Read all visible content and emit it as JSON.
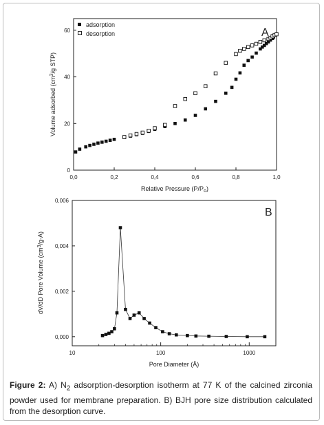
{
  "chart_data": [
    {
      "type": "scatter",
      "panel_label": "A",
      "xlabel_main": "Relative Pressure (P/P",
      "xlabel_sub": "o",
      "xlabel_end": ")",
      "ylabel_main": "Volume adsorbed (cm",
      "ylabel_sup": "3",
      "ylabel_end": "/g STP)",
      "xlim": [
        0.0,
        1.0
      ],
      "ylim": [
        0,
        65
      ],
      "xticks": [
        0.0,
        0.2,
        0.4,
        0.6,
        0.8,
        1.0
      ],
      "xtick_labels": [
        "0,0",
        "0,2",
        "0,4",
        "0,6",
        "0,8",
        "1,0"
      ],
      "yticks": [
        0,
        20,
        40,
        60
      ],
      "ytick_labels": [
        "0",
        "20",
        "40",
        "60"
      ],
      "legend_position": "top-left",
      "series": [
        {
          "name": "adsorption",
          "marker": "filled-square",
          "x": [
            0.01,
            0.03,
            0.06,
            0.08,
            0.1,
            0.12,
            0.14,
            0.16,
            0.18,
            0.2,
            0.25,
            0.28,
            0.31,
            0.34,
            0.37,
            0.4,
            0.45,
            0.5,
            0.55,
            0.6,
            0.65,
            0.7,
            0.75,
            0.78,
            0.8,
            0.82,
            0.84,
            0.86,
            0.88,
            0.9,
            0.92,
            0.93,
            0.94,
            0.95,
            0.96,
            0.97,
            0.98,
            0.985,
            0.99
          ],
          "y": [
            7.8,
            9.0,
            10.0,
            10.6,
            11.1,
            11.6,
            12.0,
            12.4,
            12.8,
            13.2,
            14.0,
            14.6,
            15.2,
            15.8,
            16.6,
            17.5,
            18.7,
            20.0,
            21.5,
            23.5,
            26.3,
            29.5,
            33.0,
            35.5,
            39.0,
            41.7,
            45.0,
            47.0,
            48.5,
            50.2,
            52.0,
            52.8,
            53.5,
            54.3,
            55.0,
            55.8,
            56.5,
            57.0,
            57.8
          ]
        },
        {
          "name": "desorption",
          "marker": "open-square",
          "x": [
            0.25,
            0.28,
            0.31,
            0.34,
            0.37,
            0.4,
            0.45,
            0.5,
            0.55,
            0.6,
            0.65,
            0.7,
            0.75,
            0.8,
            0.82,
            0.84,
            0.86,
            0.88,
            0.9,
            0.92,
            0.94,
            0.96,
            0.97,
            0.98,
            0.99,
            1.0
          ],
          "y": [
            14.2,
            14.9,
            15.5,
            16.1,
            16.9,
            18.0,
            19.4,
            27.5,
            30.5,
            33.0,
            36.0,
            41.5,
            46.0,
            49.8,
            51.2,
            52.0,
            52.8,
            53.5,
            54.2,
            55.0,
            55.7,
            56.3,
            56.8,
            57.4,
            57.9,
            58.3
          ]
        }
      ]
    },
    {
      "type": "line",
      "panel_label": "B",
      "xscale": "log",
      "xlabel": "Pore Diameter (Å)",
      "ylabel_main": "dV/dD Pore Volume (cm",
      "ylabel_sup": "3",
      "ylabel_end": "/g-A)",
      "xlim": [
        10,
        2000
      ],
      "ylim": [
        -0.0004,
        0.006
      ],
      "xticks": [
        10,
        100,
        1000
      ],
      "xtick_labels": [
        "10",
        "100",
        "1000"
      ],
      "yticks": [
        0.0,
        0.002,
        0.004,
        0.006
      ],
      "ytick_labels": [
        "0,000",
        "0,002",
        "0,004",
        "0,006"
      ],
      "series": [
        {
          "marker": "filled-square",
          "x": [
            22,
            24,
            26,
            28,
            30,
            32,
            35,
            40,
            45,
            50,
            57,
            65,
            75,
            88,
            105,
            125,
            150,
            200,
            250,
            350,
            550,
            950,
            1500
          ],
          "y": [
            5e-05,
            0.0001,
            0.00015,
            0.00022,
            0.00035,
            0.00105,
            0.0048,
            0.0012,
            0.0008,
            0.00095,
            0.00105,
            0.0008,
            0.0006,
            0.0004,
            0.00022,
            0.00013,
            8e-05,
            5e-05,
            3e-05,
            2e-05,
            1e-05,
            0.0,
            0.0
          ]
        }
      ]
    }
  ],
  "caption": {
    "label": "Figure 2:",
    "part1": "A) N",
    "sub": "2",
    "part2": " adsorption-desorption isotherm at 77 K of the calcined zirconia powder used for membrane preparation. B) BJH pore size distribution calculated from the desorption curve."
  }
}
